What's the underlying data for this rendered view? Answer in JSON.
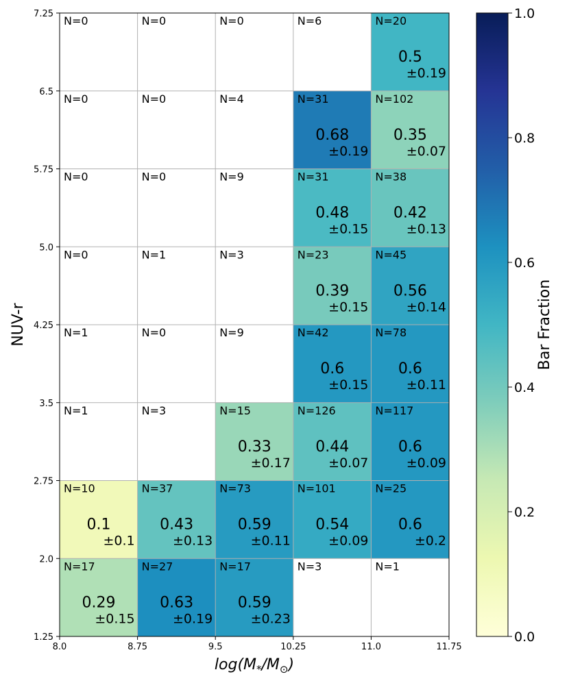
{
  "chart_data": {
    "type": "heatmap",
    "title": "",
    "xlabel": "log(M*/M⊙)",
    "ylabel": "NUV-r",
    "colorbar_label": "Bar Fraction",
    "colorbar_ticks": [
      "0.0",
      "0.2",
      "0.4",
      "0.6",
      "0.8",
      "1.0"
    ],
    "colorbar_range": [
      0,
      1
    ],
    "x_edges": [
      "8.0",
      "8.75",
      "9.5",
      "10.25",
      "11.0",
      "11.75"
    ],
    "y_edges": [
      "1.25",
      "2.0",
      "2.75",
      "3.5",
      "4.25",
      "5.0",
      "5.75",
      "6.5",
      "7.25"
    ],
    "rows_top_to_bottom": [
      [
        {
          "n": "N=0"
        },
        {
          "n": "N=0"
        },
        {
          "n": "N=0"
        },
        {
          "n": "N=6"
        },
        {
          "n": "N=20",
          "value": 0.5,
          "label": "0.5",
          "err": "±0.19"
        }
      ],
      [
        {
          "n": "N=0"
        },
        {
          "n": "N=0"
        },
        {
          "n": "N=4"
        },
        {
          "n": "N=31",
          "value": 0.68,
          "label": "0.68",
          "err": "±0.19"
        },
        {
          "n": "N=102",
          "value": 0.35,
          "label": "0.35",
          "err": "±0.07"
        }
      ],
      [
        {
          "n": "N=0"
        },
        {
          "n": "N=0"
        },
        {
          "n": "N=9"
        },
        {
          "n": "N=31",
          "value": 0.48,
          "label": "0.48",
          "err": "±0.15"
        },
        {
          "n": "N=38",
          "value": 0.42,
          "label": "0.42",
          "err": "±0.13"
        }
      ],
      [
        {
          "n": "N=0"
        },
        {
          "n": "N=1"
        },
        {
          "n": "N=3"
        },
        {
          "n": "N=23",
          "value": 0.39,
          "label": "0.39",
          "err": "±0.15"
        },
        {
          "n": "N=45",
          "value": 0.56,
          "label": "0.56",
          "err": "±0.14"
        }
      ],
      [
        {
          "n": "N=1"
        },
        {
          "n": "N=0"
        },
        {
          "n": "N=9"
        },
        {
          "n": "N=42",
          "value": 0.6,
          "label": "0.6",
          "err": "±0.15"
        },
        {
          "n": "N=78",
          "value": 0.6,
          "label": "0.6",
          "err": "±0.11"
        }
      ],
      [
        {
          "n": "N=1"
        },
        {
          "n": "N=3"
        },
        {
          "n": "N=15",
          "value": 0.33,
          "label": "0.33",
          "err": "±0.17"
        },
        {
          "n": "N=126",
          "value": 0.44,
          "label": "0.44",
          "err": "±0.07"
        },
        {
          "n": "N=117",
          "value": 0.6,
          "label": "0.6",
          "err": "±0.09"
        }
      ],
      [
        {
          "n": "N=10",
          "value": 0.1,
          "label": "0.1",
          "err": "±0.1"
        },
        {
          "n": "N=37",
          "value": 0.43,
          "label": "0.43",
          "err": "±0.13"
        },
        {
          "n": "N=73",
          "value": 0.59,
          "label": "0.59",
          "err": "±0.11"
        },
        {
          "n": "N=101",
          "value": 0.54,
          "label": "0.54",
          "err": "±0.09"
        },
        {
          "n": "N=25",
          "value": 0.6,
          "label": "0.6",
          "err": "±0.2"
        }
      ],
      [
        {
          "n": "N=17",
          "value": 0.29,
          "label": "0.29",
          "err": "±0.15"
        },
        {
          "n": "N=27",
          "value": 0.63,
          "label": "0.63",
          "err": "±0.19"
        },
        {
          "n": "N=17",
          "value": 0.59,
          "label": "0.59",
          "err": "±0.23"
        },
        {
          "n": "N=3"
        },
        {
          "n": "N=1"
        }
      ]
    ]
  }
}
